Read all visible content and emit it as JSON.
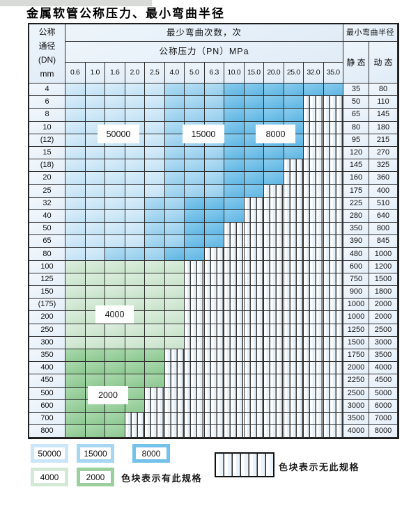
{
  "title": "金属软管公称压力、最小弯曲半径",
  "table": {
    "dn_header_lines": [
      "公称",
      "通径",
      "(DN)",
      "mm"
    ],
    "bend_cycles_header": "最少弯曲次数，次",
    "pressure_header": "公称压力（PN）MPa",
    "bend_radius_header": "最小弯曲半径",
    "static_header": "静 态",
    "dynamic_header": "动 态",
    "pressure_columns": [
      "0.6",
      "1.0",
      "1.6",
      "2.0",
      "2.5",
      "4.0",
      "5.0",
      "6.3",
      "10.0",
      "15.0",
      "20.0",
      "25.0",
      "32.0",
      "35.0"
    ],
    "zone_legend_note": "L=50000次, M=15000次, D=8000次, G=4000次, E=2000次, H=无此规格",
    "rows": [
      {
        "dn": "4",
        "zones": "LLLLLMMMDDDDDD",
        "static": "35",
        "dynamic": "80"
      },
      {
        "dn": "6",
        "zones": "LLLLLMMMDDDDHH",
        "static": "50",
        "dynamic": "110"
      },
      {
        "dn": "8",
        "zones": "LLLLLMMMDDDDHH",
        "static": "65",
        "dynamic": "145"
      },
      {
        "dn": "10",
        "zones": "LLLLLMMMDDDDHH",
        "static": "80",
        "dynamic": "180"
      },
      {
        "dn": "(12)",
        "zones": "LLLLLMMMDDDDHH",
        "static": "95",
        "dynamic": "215"
      },
      {
        "dn": "15",
        "zones": "LLLLLMMMDDDDHH",
        "static": "120",
        "dynamic": "270"
      },
      {
        "dn": "(18)",
        "zones": "LLLLLMMMDDDHHH",
        "static": "145",
        "dynamic": "325"
      },
      {
        "dn": "20",
        "zones": "LLLLLMMMDDDHHH",
        "static": "160",
        "dynamic": "360"
      },
      {
        "dn": "25",
        "zones": "LLLLLMMMDDHHHH",
        "static": "175",
        "dynamic": "400"
      },
      {
        "dn": "32",
        "zones": "LLLLMMDDDHHHHH",
        "static": "225",
        "dynamic": "510"
      },
      {
        "dn": "40",
        "zones": "LLLLMMDDDHHHHH",
        "static": "280",
        "dynamic": "640"
      },
      {
        "dn": "50",
        "zones": "LLLLMMDDHHHHHH",
        "static": "350",
        "dynamic": "800"
      },
      {
        "dn": "65",
        "zones": "LLLLMMDDHHHHHH",
        "static": "390",
        "dynamic": "845"
      },
      {
        "dn": "80",
        "zones": "LLMMMDDHHHHHHH",
        "static": "480",
        "dynamic": "1000"
      },
      {
        "dn": "100",
        "zones": "GGGGGGHHHHHHHH",
        "static": "600",
        "dynamic": "1200"
      },
      {
        "dn": "125",
        "zones": "GGGGGGHHHHHHHH",
        "static": "750",
        "dynamic": "1500"
      },
      {
        "dn": "150",
        "zones": "GGGGGGHHHHHHHH",
        "static": "900",
        "dynamic": "1800"
      },
      {
        "dn": "(175)",
        "zones": "GGGGGGHHHHHHHH",
        "static": "1000",
        "dynamic": "2000"
      },
      {
        "dn": "200",
        "zones": "GGGGGGHHHHHHHH",
        "static": "1000",
        "dynamic": "2000"
      },
      {
        "dn": "250",
        "zones": "GGGGGGHHHHHHHH",
        "static": "1250",
        "dynamic": "2500"
      },
      {
        "dn": "300",
        "zones": "GGGGGGHHHHHHHH",
        "static": "1500",
        "dynamic": "3000"
      },
      {
        "dn": "350",
        "zones": "EEEEEHHHHHHHHH",
        "static": "1750",
        "dynamic": "3500"
      },
      {
        "dn": "400",
        "zones": "EEEEEHHHHHHHHH",
        "static": "2000",
        "dynamic": "4000"
      },
      {
        "dn": "450",
        "zones": "EEEEEHHHHHHHHH",
        "static": "2250",
        "dynamic": "4500"
      },
      {
        "dn": "500",
        "zones": "EEEEHHHHHHHHHH",
        "static": "2500",
        "dynamic": "5000"
      },
      {
        "dn": "600",
        "zones": "EEEEHHHHHHHHHH",
        "static": "3000",
        "dynamic": "6000"
      },
      {
        "dn": "700",
        "zones": "EEEHHHHHHHHHHH",
        "static": "3500",
        "dynamic": "7000"
      },
      {
        "dn": "800",
        "zones": "EEEHHHHHHHHHHH",
        "static": "4000",
        "dynamic": "8000"
      }
    ]
  },
  "zone_labels": {
    "l50000": "50000",
    "l15000": "15000",
    "l8000": "8000",
    "l4000": "4000",
    "l2000": "2000"
  },
  "legend": {
    "chip_labels": [
      "50000",
      "15000",
      "8000",
      "4000",
      "2000"
    ],
    "has_spec_text": "色块表示有此规格",
    "no_spec_text": "色块表示无此规格"
  },
  "colors": {
    "zone_50000": "#cbe6f8",
    "zone_15000": "#a6d6f1",
    "zone_8000": "#74c2ea",
    "zone_4000": "#d4e9d5",
    "zone_2000": "#9bd09e",
    "plain_cell": "#e9f2fa",
    "grid_line": "#2d2d2d"
  }
}
